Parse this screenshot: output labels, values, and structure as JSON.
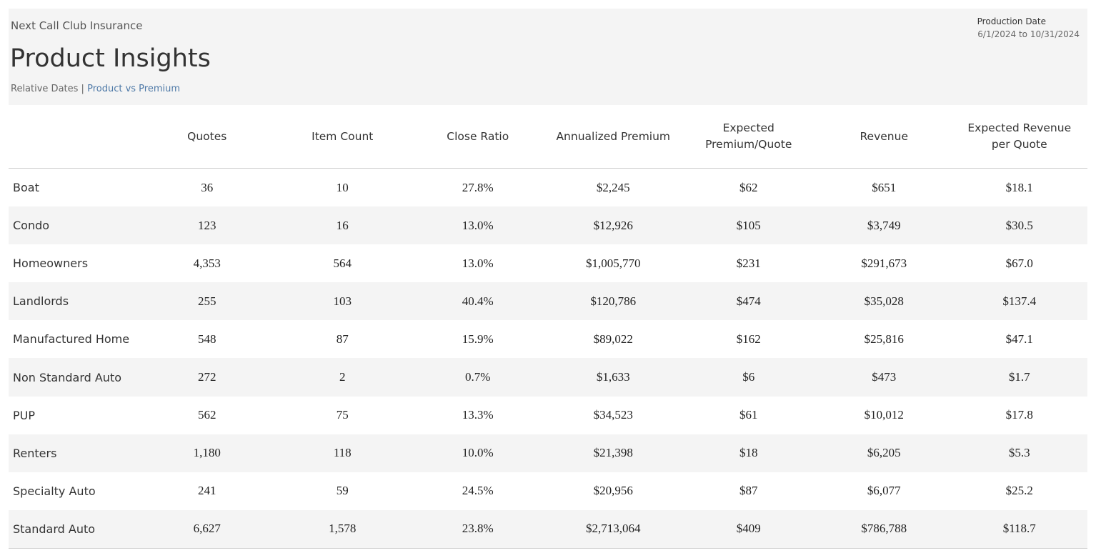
{
  "header": {
    "org": "Next Call Club Insurance",
    "title": "Product Insights",
    "breadcrumb": [
      "Relative Dates",
      "Product vs Premium"
    ],
    "separator": "|",
    "production_date_label": "Production Date",
    "production_date_range": "6/1/2024 to 10/31/2024"
  },
  "table": {
    "columns": [
      "Quotes",
      "Item Count",
      "Close Ratio",
      "Annualized Premium",
      "Expected Premium/Quote",
      "Revenue",
      "Expected Revenue per Quote"
    ],
    "rows": [
      [
        "Boat",
        "36",
        "10",
        "27.8%",
        "$2,245",
        "$62",
        "$651",
        "$18.1"
      ],
      [
        "Condo",
        "123",
        "16",
        "13.0%",
        "$12,926",
        "$105",
        "$3,749",
        "$30.5"
      ],
      [
        "Homeowners",
        "4,353",
        "564",
        "13.0%",
        "$1,005,770",
        "$231",
        "$291,673",
        "$67.0"
      ],
      [
        "Landlords",
        "255",
        "103",
        "40.4%",
        "$120,786",
        "$474",
        "$35,028",
        "$137.4"
      ],
      [
        "Manufactured Home",
        "548",
        "87",
        "15.9%",
        "$89,022",
        "$162",
        "$25,816",
        "$47.1"
      ],
      [
        "Non Standard Auto",
        "272",
        "2",
        "0.7%",
        "$1,633",
        "$6",
        "$473",
        "$1.7"
      ],
      [
        "PUP",
        "562",
        "75",
        "13.3%",
        "$34,523",
        "$61",
        "$10,012",
        "$17.8"
      ],
      [
        "Renters",
        "1,180",
        "118",
        "10.0%",
        "$21,398",
        "$18",
        "$6,205",
        "$5.3"
      ],
      [
        "Specialty Auto",
        "241",
        "59",
        "24.5%",
        "$20,956",
        "$87",
        "$6,077",
        "$25.2"
      ],
      [
        "Standard Auto",
        "6,627",
        "1,578",
        "23.8%",
        "$2,713,064",
        "$409",
        "$786,788",
        "$118.7"
      ]
    ]
  }
}
